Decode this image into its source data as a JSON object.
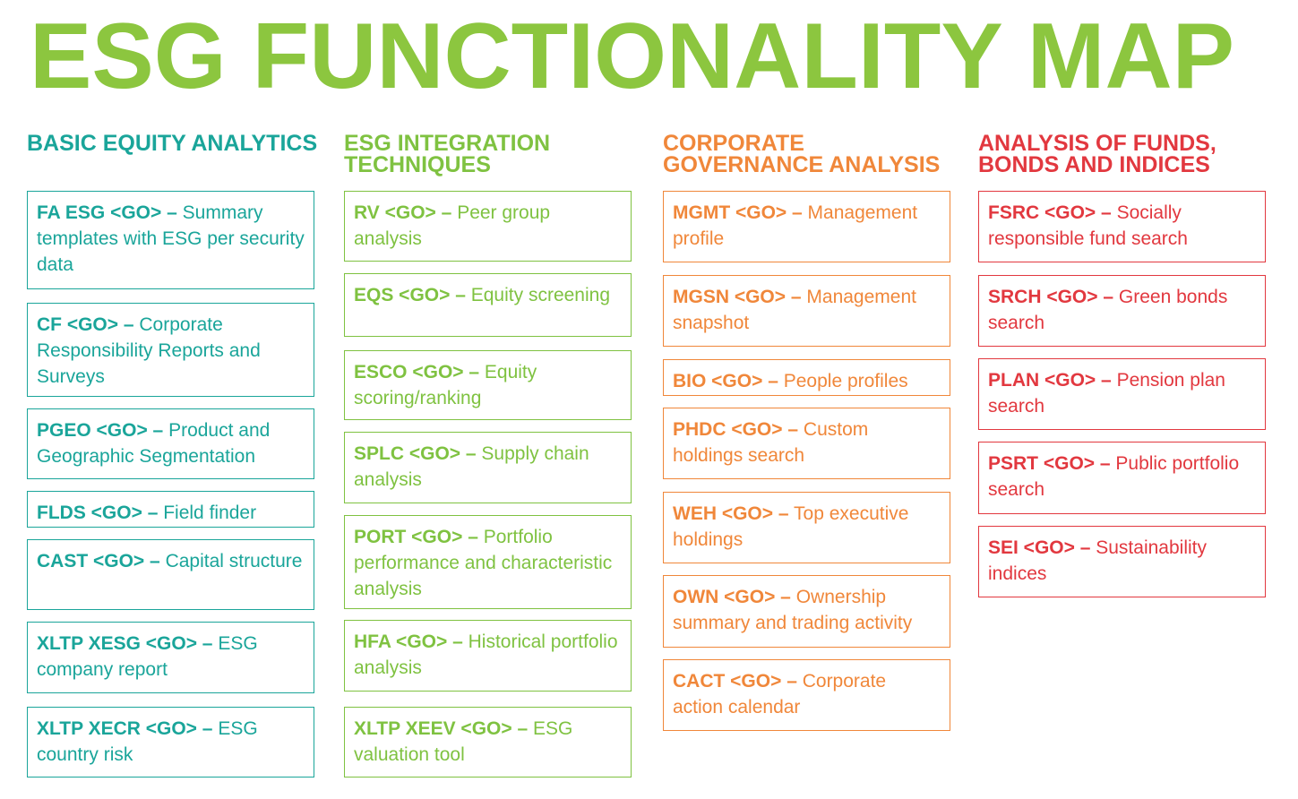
{
  "title": "ESG FUNCTIONALITY MAP",
  "columns": [
    {
      "heading": "BASIC EQUITY ANALYTICS",
      "items": [
        {
          "command": "FA ESG <GO> –",
          "description": "Summary templates with ESG per security data"
        },
        {
          "command": "CF <GO> –",
          "description": "Corporate Responsibility Reports and Surveys"
        },
        {
          "command": "PGEO <GO> –",
          "description": "Product and Geographic Segmentation"
        },
        {
          "command": "FLDS <GO> –",
          "description": "Field finder"
        },
        {
          "command": "CAST <GO> –",
          "description": "Capital structure"
        },
        {
          "command": "XLTP XESG <GO> –",
          "description": "ESG company report"
        },
        {
          "command": "XLTP XECR <GO> –",
          "description": "ESG country risk"
        }
      ]
    },
    {
      "heading": "ESG INTEGRATION TECHNIQUES",
      "items": [
        {
          "command": "RV <GO> –",
          "description": "Peer group analysis"
        },
        {
          "command": "EQS <GO> –",
          "description": "Equity screening"
        },
        {
          "command": "ESCO <GO> –",
          "description": "Equity scoring/ranking"
        },
        {
          "command": "SPLC <GO> –",
          "description": "Supply chain analysis"
        },
        {
          "command": "PORT <GO> –",
          "description": "Portfolio performance and characteristic analysis"
        },
        {
          "command": "HFA <GO> –",
          "description": "Historical portfolio analysis"
        },
        {
          "command": "XLTP XEEV <GO> –",
          "description": "ESG valuation tool"
        }
      ]
    },
    {
      "heading": "CORPORATE GOVERNANCE ANALYSIS",
      "items": [
        {
          "command": "MGMT <GO> –",
          "description": "Management profile"
        },
        {
          "command": "MGSN <GO> –",
          "description": "Management snapshot"
        },
        {
          "command": "BIO <GO> –",
          "description": "People profiles"
        },
        {
          "command": "PHDC <GO> –",
          "description": "Custom holdings search"
        },
        {
          "command": "WEH <GO> –",
          "description": "Top executive holdings"
        },
        {
          "command": "OWN <GO> –",
          "description": "Ownership summary and trading activity"
        },
        {
          "command": "CACT <GO> –",
          "description": "Corporate action calendar"
        }
      ]
    },
    {
      "heading": "ANALYSIS OF FUNDS, BONDS AND INDICES",
      "items": [
        {
          "command": "FSRC <GO> –",
          "description": "Socially responsible fund search"
        },
        {
          "command": "SRCH <GO> –",
          "description": "Green bonds search"
        },
        {
          "command": "PLAN <GO> –",
          "description": "Pension plan search"
        },
        {
          "command": "PSRT <GO> –",
          "description": "Public portfolio search"
        },
        {
          "command": "SEI <GO> –",
          "description": "Sustainability indices"
        }
      ]
    }
  ]
}
